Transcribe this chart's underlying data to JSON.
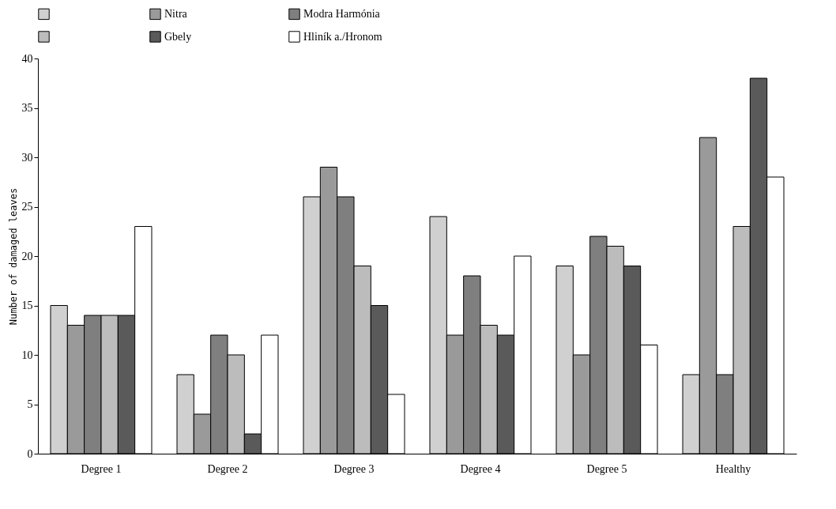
{
  "chart_data": {
    "type": "bar",
    "ylabel": "Number of damaged leaves",
    "categories": [
      "Degree 1",
      "Degree 2",
      "Degree 3",
      "Degree 4",
      "Degree 5",
      "Healthy"
    ],
    "series": [
      {
        "color": "#d0d0d0",
        "values": [
          15,
          8,
          26,
          24,
          19,
          8
        ]
      },
      {
        "name": "Nitra",
        "color": "#9a9a9a",
        "values": [
          13,
          4,
          29,
          12,
          10,
          32
        ]
      },
      {
        "name": "Modra Harmónia",
        "color": "#7f7f7f",
        "values": [
          14,
          12,
          26,
          18,
          22,
          8
        ]
      },
      {
        "color": "#bcbcbc",
        "values": [
          14,
          10,
          19,
          13,
          21,
          23
        ]
      },
      {
        "name": "Gbely",
        "color": "#5a5a5a",
        "values": [
          14,
          2,
          15,
          12,
          19,
          38
        ]
      },
      {
        "name": "Hliník a./Hronom",
        "color": "#ffffff",
        "values": [
          23,
          12,
          6,
          20,
          11,
          28
        ]
      }
    ],
    "ylim": [
      0,
      40
    ],
    "yticks": [
      0,
      5,
      10,
      15,
      20,
      25,
      30,
      35,
      40
    ],
    "grid": false,
    "legend": "top"
  }
}
